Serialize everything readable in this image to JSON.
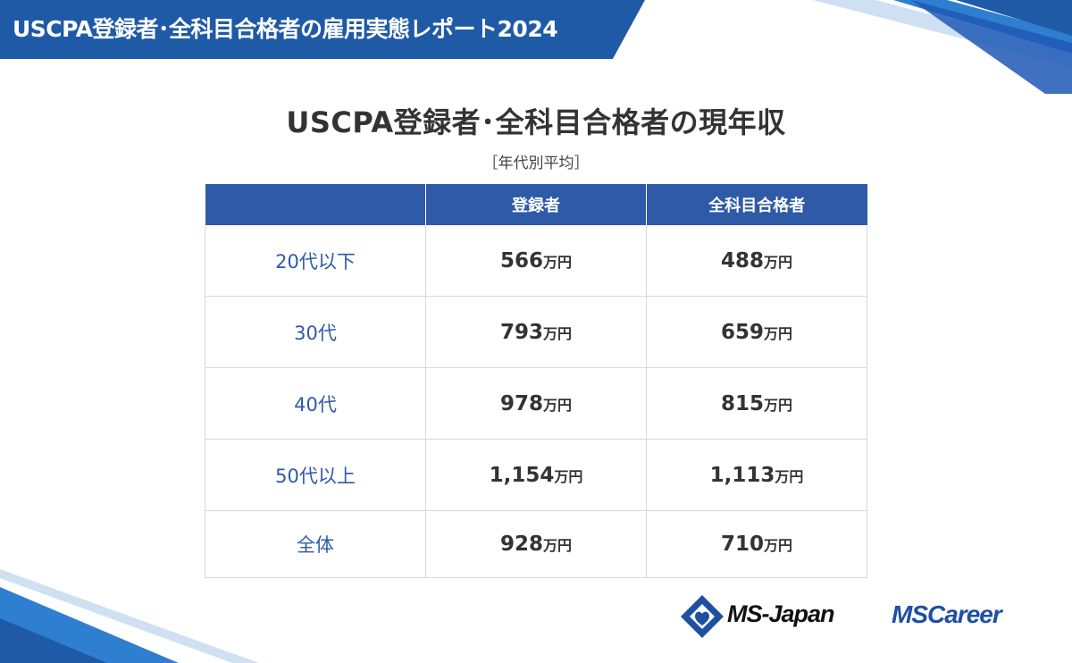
{
  "header": {
    "title": "USCPA登録者･全科目合格者の雇用実態レポート2024"
  },
  "chart": {
    "title": "USCPA登録者･全科目合格者の現年収",
    "subtitle": "［年代別平均］"
  },
  "table": {
    "columns": [
      "",
      "登録者",
      "全科目合格者"
    ],
    "unit": "万円",
    "rows": [
      {
        "label": "20代以下",
        "registered": "566",
        "passed": "488"
      },
      {
        "label": "30代",
        "registered": "793",
        "passed": "659"
      },
      {
        "label": "40代",
        "registered": "978",
        "passed": "815"
      },
      {
        "label": "50代以上",
        "registered": "1,154",
        "passed": "1,113"
      },
      {
        "label": "全体",
        "registered": "928",
        "passed": "710"
      }
    ]
  },
  "logos": {
    "ms_japan": "MS-Japan",
    "ms_career": "MSCareer"
  },
  "colors": {
    "brand_blue": "#1f5aa6",
    "header_cell": "#2e5aa8",
    "row_label": "#2e5aa8"
  }
}
